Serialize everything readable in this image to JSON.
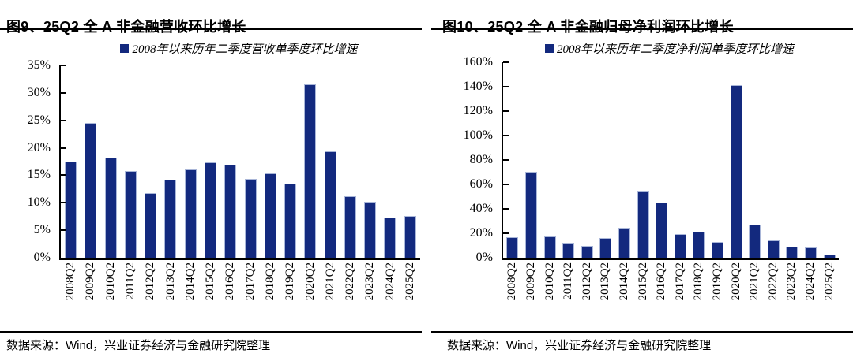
{
  "chart_data": [
    {
      "type": "bar",
      "title": "图9、25Q2 全 A 非金融营收环比增长",
      "legend": "2008年以来历年二季度营收单季度环比增速",
      "categories": [
        "2008Q2",
        "2009Q2",
        "2010Q2",
        "2011Q2",
        "2012Q2",
        "2013Q2",
        "2014Q2",
        "2015Q2",
        "2016Q2",
        "2017Q2",
        "2018Q2",
        "2019Q2",
        "2020Q2",
        "2021Q2",
        "2022Q2",
        "2023Q2",
        "2024Q2",
        "2025Q2"
      ],
      "values": [
        17.5,
        24.5,
        18.2,
        15.8,
        11.8,
        14.2,
        16.1,
        17.4,
        16.9,
        14.4,
        15.4,
        13.5,
        31.5,
        19.3,
        11.2,
        10.2,
        7.3,
        7.6
      ],
      "unit": "%",
      "ylim": [
        0,
        35
      ],
      "y_tick_step": 5,
      "y_tick_labels": [
        "0%",
        "5%",
        "10%",
        "15%",
        "20%",
        "25%",
        "30%",
        "35%"
      ],
      "grid": false,
      "legend_position": "top",
      "bar_color": "#13297E",
      "bar_edge_color": "#A9B6D8",
      "source": "数据来源：Wind，兴业证券经济与金融研究院整理"
    },
    {
      "type": "bar",
      "title": "图10、25Q2 全 A 非金融归母净利润环比增长",
      "legend": "2008年以来历年二季度净利润单季度环比增速",
      "categories": [
        "2008Q2",
        "2009Q2",
        "2010Q2",
        "2011Q2",
        "2012Q2",
        "2013Q2",
        "2014Q2",
        "2015Q2",
        "2016Q2",
        "2017Q2",
        "2018Q2",
        "2019Q2",
        "2020Q2",
        "2021Q2",
        "2022Q2",
        "2023Q2",
        "2024Q2",
        "2025Q2"
      ],
      "values": [
        17,
        70.5,
        17.5,
        12,
        9.5,
        16,
        24.5,
        55,
        45,
        19.5,
        21.5,
        13,
        141,
        27,
        14.5,
        9,
        8.5,
        2.5
      ],
      "unit": "%",
      "ylim": [
        0,
        160
      ],
      "y_tick_step": 20,
      "y_tick_labels": [
        "0%",
        "20%",
        "40%",
        "60%",
        "80%",
        "100%",
        "120%",
        "140%",
        "160%"
      ],
      "grid": false,
      "legend_position": "top",
      "bar_color": "#13297E",
      "bar_edge_color": "#A9B6D8",
      "source": "数据来源：Wind，兴业证券经济与金融研究院整理"
    }
  ]
}
